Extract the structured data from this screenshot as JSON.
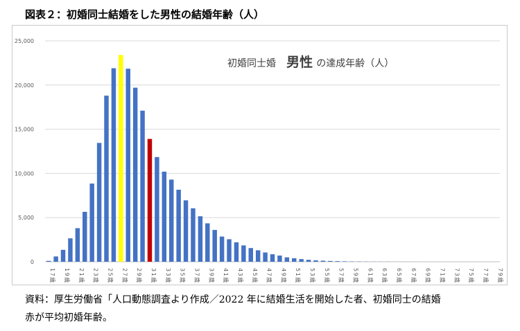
{
  "figure_title": "図表２：初婚同士結婚をした男性の結婚年齢（人）",
  "note_line1": "資料：厚生労働省「人口動態調査より作成／2022 年に結婚生活を開始した者、初婚同士の結婚",
  "note_line2": "赤が平均初婚年齢。",
  "chart_data": {
    "type": "bar",
    "title_prefix": "初婚同士婚",
    "title_emphasis": "男性",
    "title_suffix": "の達成年齢（人）",
    "categories": [
      "17歳",
      "18歳",
      "19歳",
      "20歳",
      "21歳",
      "22歳",
      "23歳",
      "24歳",
      "25歳",
      "26歳",
      "27歳",
      "28歳",
      "29歳",
      "30歳",
      "31歳",
      "32歳",
      "33歳",
      "34歳",
      "35歳",
      "36歳",
      "37歳",
      "38歳",
      "39歳",
      "40歳",
      "41歳",
      "42歳",
      "43歳",
      "44歳",
      "45歳",
      "46歳",
      "47歳",
      "48歳",
      "49歳",
      "50歳",
      "51歳",
      "52歳",
      "53歳",
      "54歳",
      "55歳",
      "56歳",
      "57歳",
      "58歳",
      "59歳",
      "60歳",
      "61歳",
      "62歳",
      "63歳",
      "64歳",
      "65歳",
      "66歳",
      "67歳",
      "68歳",
      "69歳",
      "70歳",
      "71歳",
      "72歳",
      "73歳",
      "74歳",
      "75歳",
      "76歳",
      "77歳",
      "78歳",
      "79歳"
    ],
    "tick_labels_shown": [
      "17歳",
      "19歳",
      "21歳",
      "23歳",
      "25歳",
      "27歳",
      "29歳",
      "31歳",
      "33歳",
      "35歳",
      "37歳",
      "39歳",
      "41歳",
      "43歳",
      "45歳",
      "47歳",
      "49歳",
      "51歳",
      "53歳",
      "55歳",
      "57歳",
      "59歳",
      "61歳",
      "63歳",
      "65歳",
      "67歳",
      "69歳",
      "71歳",
      "73歳",
      "75歳",
      "77歳",
      "79歳"
    ],
    "values": [
      100,
      600,
      1350,
      2650,
      3800,
      5650,
      8850,
      13450,
      18800,
      21900,
      23400,
      21850,
      19700,
      17100,
      13900,
      11850,
      10200,
      9300,
      8150,
      6950,
      6050,
      5150,
      4350,
      3600,
      2850,
      2550,
      2200,
      1850,
      1550,
      1300,
      1050,
      850,
      700,
      500,
      400,
      300,
      220,
      160,
      120,
      90,
      70,
      50,
      35,
      25,
      18,
      14,
      10,
      8,
      6,
      5,
      4,
      3,
      3,
      2,
      2,
      1,
      1,
      1,
      1,
      1,
      1,
      1,
      1
    ],
    "highlight": [
      {
        "category": "27歳",
        "color": "#ffff00"
      },
      {
        "category": "31歳",
        "color": "#c00000"
      }
    ],
    "bar_color": "#4472c4",
    "ylim": [
      0,
      25000
    ],
    "y_ticks": [
      0,
      5000,
      10000,
      15000,
      20000,
      25000
    ],
    "y_tick_labels": [
      "0",
      "5,000",
      "10,000",
      "15,000",
      "20,000",
      "25,000"
    ],
    "grid": true,
    "legend": "none"
  }
}
